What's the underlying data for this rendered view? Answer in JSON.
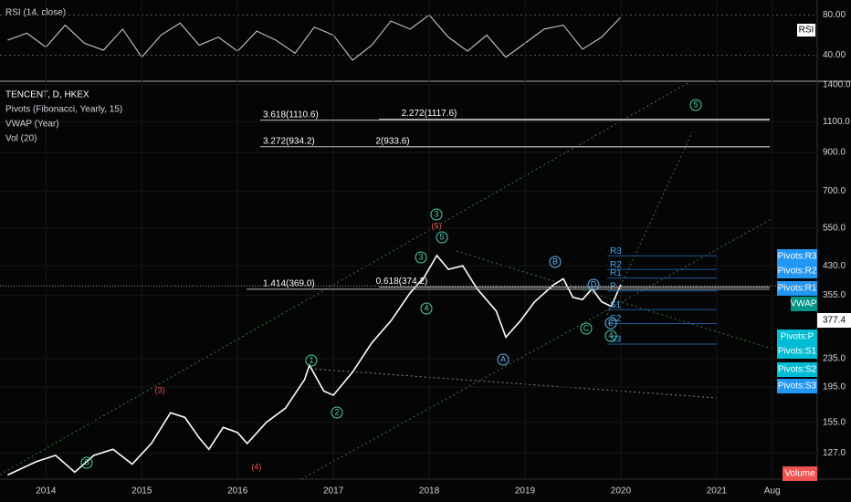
{
  "chart_data": [
    {
      "type": "line",
      "title": "RSI (14, close)",
      "axis_tag": "RSI",
      "color": "#d8d8d8",
      "x": [
        2013.6,
        2013.8,
        2014.0,
        2014.2,
        2014.4,
        2014.6,
        2014.8,
        2015.0,
        2015.2,
        2015.4,
        2015.6,
        2015.8,
        2016.0,
        2016.2,
        2016.4,
        2016.6,
        2016.8,
        2017.0,
        2017.2,
        2017.4,
        2017.6,
        2017.8,
        2018.0,
        2018.2,
        2018.4,
        2018.6,
        2018.8,
        2019.0,
        2019.2,
        2019.4,
        2019.6,
        2019.8,
        2020.0
      ],
      "values": [
        55,
        62,
        48,
        70,
        52,
        45,
        66,
        38,
        60,
        72,
        50,
        58,
        44,
        64,
        55,
        42,
        68,
        60,
        35,
        50,
        74,
        66,
        80,
        58,
        44,
        60,
        38,
        52,
        66,
        70,
        46,
        58,
        78
      ],
      "xlim": [
        2013.52,
        2022.05
      ],
      "ylim": [
        15,
        95
      ],
      "yticks": [
        {
          "value": 40,
          "label": "40.00"
        },
        {
          "value": 80,
          "label": "80.00"
        }
      ]
    },
    {
      "type": "line",
      "title": "TENCENT, D, HKEX",
      "log_scale": true,
      "color": "#ffffff",
      "legend": [
        "Pivots (Fibonacci, Yearly, 15)",
        "VWAP (Year)",
        "Vol (20)"
      ],
      "x": [
        2013.6,
        2013.9,
        2014.1,
        2014.3,
        2014.5,
        2014.7,
        2014.9,
        2015.1,
        2015.3,
        2015.45,
        2015.6,
        2015.7,
        2015.85,
        2016.0,
        2016.1,
        2016.3,
        2016.5,
        2016.7,
        2016.75,
        2016.9,
        2017.0,
        2017.2,
        2017.4,
        2017.6,
        2017.8,
        2017.95,
        2018.08,
        2018.2,
        2018.35,
        2018.5,
        2018.7,
        2018.8,
        2018.95,
        2019.1,
        2019.3,
        2019.4,
        2019.5,
        2019.6,
        2019.7,
        2019.8,
        2019.9,
        2020.0
      ],
      "values": [
        110,
        120,
        125,
        112,
        125,
        130,
        118,
        135,
        165,
        160,
        140,
        130,
        150,
        145,
        135,
        155,
        170,
        205,
        225,
        190,
        185,
        215,
        260,
        300,
        360,
        400,
        460,
        420,
        430,
        370,
        320,
        270,
        300,
        340,
        380,
        395,
        350,
        345,
        370,
        340,
        330,
        380
      ],
      "xlim": [
        2013.52,
        2022.05
      ],
      "ylim": [
        107,
        1440
      ],
      "xticks": [
        2014,
        2015,
        2016,
        2017,
        2018,
        2019,
        2020,
        2021,
        {
          "value": 2021.58,
          "label": "Aug"
        }
      ],
      "yticks": [
        {
          "value": 127,
          "label": "127.0"
        },
        {
          "value": 155,
          "label": "155.0"
        },
        {
          "value": 195,
          "label": "195.0"
        },
        {
          "value": 235,
          "label": "235.0"
        },
        {
          "value": 355,
          "label": "355.0"
        },
        {
          "value": 430,
          "label": "430.0"
        },
        {
          "value": 550,
          "label": "550.0"
        },
        {
          "value": 700,
          "label": "700.0"
        },
        {
          "value": 900,
          "label": "900.0"
        },
        {
          "value": 1100,
          "label": "1100.0"
        },
        {
          "value": 1400,
          "label": "1400.0"
        }
      ],
      "fib_levels": [
        {
          "label": "3.618(1110.6)",
          "value": 1110.6
        },
        {
          "label": "2.272(1117.6)",
          "value": 1117.6
        },
        {
          "label": "3.272(934.2)",
          "value": 934.2
        },
        {
          "label": "2(933.6)",
          "value": 933.6
        },
        {
          "label": "1.414(369.0)",
          "value": 369.0
        },
        {
          "label": "0.618(374.2)",
          "value": 374.2
        }
      ],
      "pivots": [
        {
          "label": "R3",
          "tag": "Pivots:R3",
          "value": 459
        },
        {
          "label": "R2",
          "tag": "Pivots:R2",
          "value": 420
        },
        {
          "label": "R1",
          "tag": "Pivots:R1",
          "value": 397
        },
        {
          "label": "P",
          "tag": "Pivots:P",
          "value": 365
        },
        {
          "label": "S1",
          "tag": "Pivots:S1",
          "value": 323
        },
        {
          "label": "S2",
          "tag": "Pivots:S2",
          "value": 295
        },
        {
          "label": "S3",
          "tag": "Pivots:S3",
          "value": 258
        }
      ],
      "vwap_tag": "VWAP",
      "last_price": {
        "label": "377.4",
        "value": 377.4
      },
      "volume_tag": "Volume",
      "waves": [
        "(3)",
        "(4)",
        "(5)",
        "S",
        "1",
        "2",
        "3",
        "3",
        "4",
        "5",
        "A",
        "B",
        "C",
        "D",
        "E",
        "4",
        "5"
      ]
    }
  ]
}
